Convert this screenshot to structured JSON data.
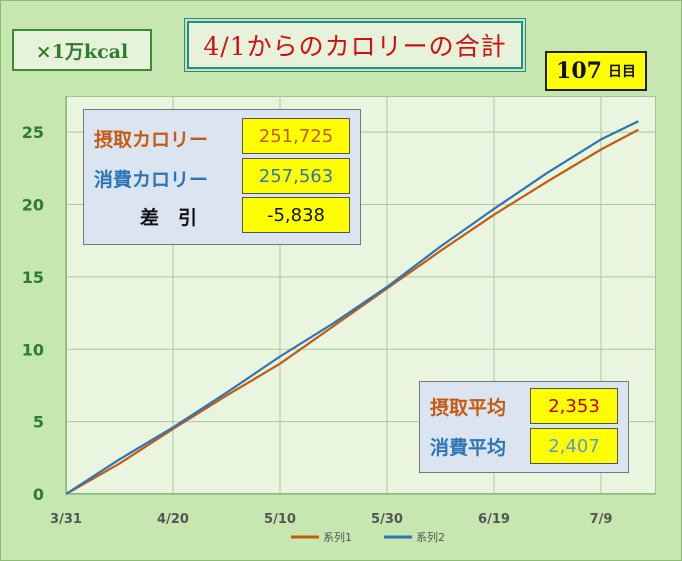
{
  "unit_label": "×1万kcal",
  "title": "4/1からのカロリーの合計",
  "days": {
    "number": "107",
    "unit": "日目"
  },
  "totals": {
    "intake": {
      "label": "摂取カロリー",
      "value": "251,725"
    },
    "burn": {
      "label": "消費カロリー",
      "value": "257,563"
    },
    "diff": {
      "label": "差　引",
      "value": "-5,838"
    }
  },
  "averages": {
    "intake": {
      "label": "摂取平均",
      "value": "2,353"
    },
    "burn": {
      "label": "消費平均",
      "value": "2,407"
    }
  },
  "colors": {
    "series1": "#c55a11",
    "series2": "#2e75b6",
    "axis_text": "#2e7d2e",
    "title": "#d01010"
  },
  "chart_data": {
    "type": "line",
    "x_start": "3/31",
    "x_tick_labels": [
      "3/31",
      "4/20",
      "5/10",
      "5/30",
      "6/19",
      "7/9"
    ],
    "y_ticks": [
      0,
      5,
      10,
      15,
      20,
      25
    ],
    "ylim": [
      0,
      27.5
    ],
    "grid": true,
    "legend_position": "bottom",
    "series": [
      {
        "name": "系列1",
        "x": [
          0,
          10,
          20,
          30,
          40,
          50,
          60,
          70,
          80,
          90,
          100,
          107
        ],
        "values": [
          0,
          2.1,
          4.5,
          6.8,
          9.0,
          11.6,
          14.2,
          16.8,
          19.3,
          21.6,
          23.8,
          25.17
        ]
      },
      {
        "name": "系列2",
        "x": [
          0,
          10,
          20,
          30,
          40,
          50,
          60,
          70,
          80,
          90,
          100,
          107
        ],
        "values": [
          0,
          2.4,
          4.6,
          7.0,
          9.5,
          11.8,
          14.3,
          17.1,
          19.7,
          22.2,
          24.5,
          25.76
        ]
      }
    ]
  }
}
